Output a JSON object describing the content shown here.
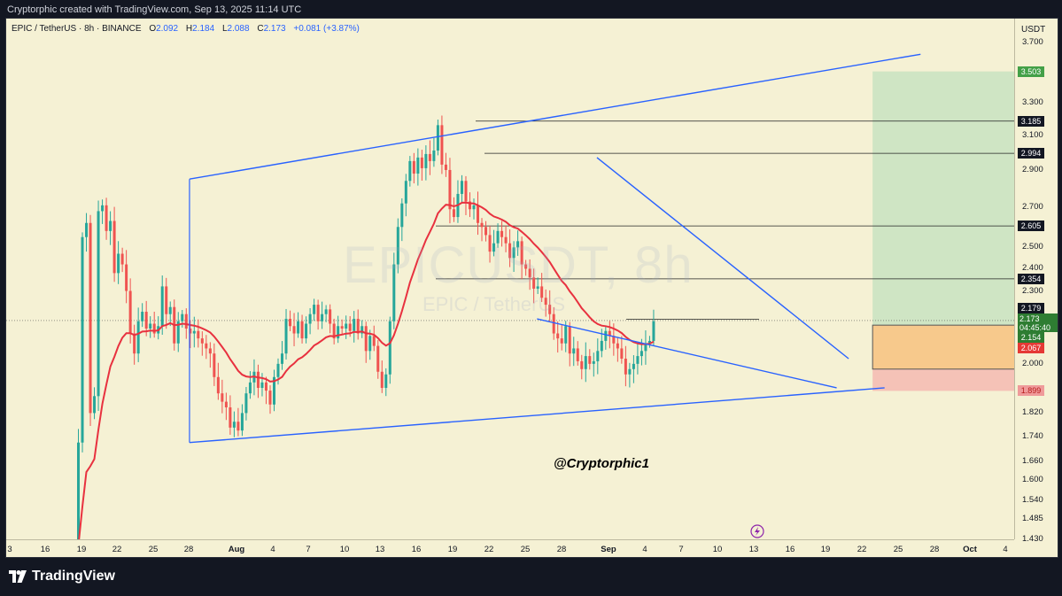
{
  "header": {
    "caption": "Cryptorphic created with TradingView.com, Sep 13, 2025 11:14 UTC"
  },
  "legend": {
    "symbol": "EPIC / TetherUS · 8h · BINANCE",
    "o_label": "O",
    "o": "2.092",
    "h_label": "H",
    "h": "2.184",
    "l_label": "L",
    "l": "2.088",
    "c_label": "C",
    "c": "2.173",
    "change": "+0.081 (+3.87%)"
  },
  "unit": "USDT",
  "watermark": {
    "main": "EPICUSDT, 8h",
    "sub": "EPIC / TetherUS"
  },
  "handle": "@Cryptorphic1",
  "footer": {
    "brand": "TradingView"
  },
  "colors": {
    "up": "#26a69a",
    "down": "#ef5350",
    "ema": "#e8313f",
    "trend": "#2962ff",
    "target_zone": "#cfe5c4",
    "stop_zone": "#f5c2b7",
    "entry_zone": "#f7c98c"
  },
  "chart_data": {
    "type": "candlestick",
    "timeframe": "8h",
    "price_axis": {
      "ticks": [
        3.7,
        3.5,
        3.3,
        3.1,
        2.9,
        2.7,
        2.5,
        2.4,
        2.3,
        2.2,
        2.0,
        1.9,
        1.82,
        1.74,
        1.66,
        1.6,
        1.54,
        1.485,
        1.43
      ],
      "tick_labels": [
        "3.700",
        "3.500",
        "3.300",
        "3.100",
        "2.900",
        "2.700",
        "2.500",
        "2.400",
        "2.300",
        "2.200",
        "2.000",
        "1.900",
        "1.820",
        "1.740",
        "1.660",
        "1.600",
        "1.540",
        "1.485",
        "1.430"
      ],
      "scale": "log",
      "range": [
        1.4,
        3.85
      ]
    },
    "time_axis": {
      "ticks": [
        "3",
        "16",
        "19",
        "22",
        "25",
        "28",
        "Aug",
        "4",
        "7",
        "10",
        "13",
        "16",
        "19",
        "22",
        "25",
        "28",
        "Sep",
        "4",
        "7",
        "10",
        "13",
        "16",
        "19",
        "22",
        "25",
        "28",
        "Oct",
        "4"
      ]
    },
    "current_price": {
      "value": "2.173",
      "countdown": "04:45:40"
    },
    "price_labels": [
      {
        "value": "3.503",
        "kind": "target"
      },
      {
        "value": "3.185",
        "kind": "level"
      },
      {
        "value": "2.994",
        "kind": "level"
      },
      {
        "value": "2.605",
        "kind": "level"
      },
      {
        "value": "2.354",
        "kind": "level"
      },
      {
        "value": "2.179",
        "kind": "high"
      },
      {
        "value": "2.154",
        "kind": "entry"
      },
      {
        "value": "2.067",
        "kind": "ema"
      },
      {
        "value": "1.899",
        "kind": "stop"
      }
    ],
    "horizontal_levels": [
      3.185,
      2.994,
      2.605,
      2.354
    ],
    "ohlc_first_bar": {
      "open": 1.36,
      "close": 1.72
    },
    "candles_close": [
      1.36,
      1.72,
      2.55,
      2.62,
      1.82,
      1.88,
      2.68,
      2.71,
      2.58,
      2.63,
      2.38,
      2.47,
      2.42,
      2.3,
      2.12,
      2.04,
      2.17,
      2.21,
      2.14,
      2.16,
      2.12,
      2.15,
      2.32,
      2.2,
      2.23,
      2.08,
      2.17,
      2.2,
      2.14,
      2.12,
      2.13,
      2.1,
      2.08,
      2.06,
      2.04,
      1.95,
      1.89,
      1.86,
      1.84,
      1.77,
      1.79,
      1.76,
      1.82,
      1.89,
      1.93,
      1.97,
      1.91,
      1.93,
      1.9,
      1.85,
      1.95,
      2.0,
      2.04,
      2.18,
      2.15,
      2.12,
      2.17,
      2.1,
      2.16,
      2.2,
      2.24,
      2.17,
      2.2,
      2.22,
      2.16,
      2.1,
      2.15,
      2.14,
      2.16,
      2.13,
      2.18,
      2.12,
      2.15,
      2.05,
      2.11,
      2.07,
      1.97,
      1.91,
      1.96,
      2.17,
      2.42,
      2.6,
      2.72,
      2.84,
      2.95,
      2.88,
      2.97,
      2.91,
      2.99,
      2.95,
      3.01,
      3.16,
      2.93,
      2.9,
      2.69,
      2.65,
      2.77,
      2.84,
      2.73,
      2.69,
      2.71,
      2.62,
      2.6,
      2.56,
      2.48,
      2.52,
      2.58,
      2.55,
      2.52,
      2.45,
      2.5,
      2.53,
      2.42,
      2.4,
      2.36,
      2.31,
      2.32,
      2.27,
      2.24,
      2.2,
      2.12,
      2.1,
      2.08,
      2.15,
      2.04,
      2.06,
      2.01,
      1.98,
      2.03,
      2.0,
      2.01,
      2.05,
      2.09,
      2.13,
      2.11,
      2.08,
      2.06,
      2.02,
      1.96,
      1.98,
      2.0,
      2.03,
      2.05,
      2.08,
      2.09,
      2.17
    ],
    "ema_start": 1.38,
    "ema_period": 20,
    "trendlines": [
      {
        "name": "upper channel",
        "from": [
          "2025-07-18",
          2.85
        ],
        "to": [
          "2025-09-17",
          3.62
        ]
      },
      {
        "name": "lower channel",
        "from": [
          "2025-07-18",
          1.72
        ],
        "to": [
          "2025-09-14",
          1.91
        ]
      },
      {
        "name": "wedge top",
        "from": [
          "2025-08-21",
          2.97
        ],
        "to": [
          "2025-09-11",
          2.02
        ]
      },
      {
        "name": "wedge bottom",
        "from": [
          "2025-08-16",
          2.18
        ],
        "to": [
          "2025-09-10",
          1.91
        ]
      }
    ],
    "position": {
      "type": "long",
      "entry": 2.154,
      "target": 3.503,
      "stop": 1.899,
      "zone_from": "2025-09-13",
      "zone_to": "2025-09-30"
    },
    "secondary_box": {
      "top": 2.154,
      "bottom": 1.98,
      "from": "2025-09-13",
      "to": "2025-09-28"
    }
  }
}
